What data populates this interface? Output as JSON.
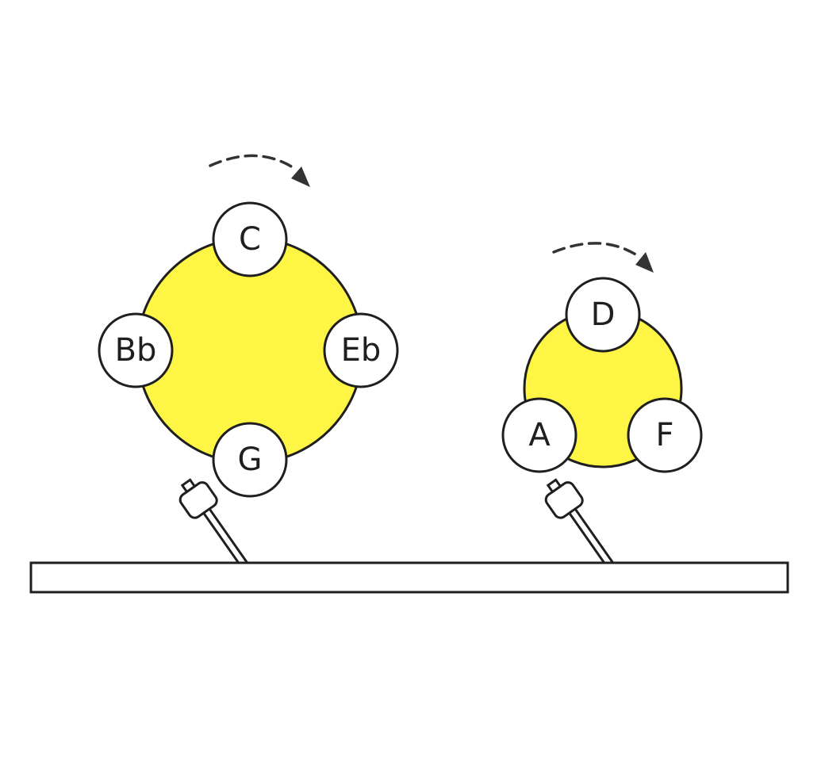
{
  "colors": {
    "wheel_fill": "#fff545",
    "stroke": "#1f1f1f",
    "note_fill": "#ffffff",
    "background": "#ffffff"
  },
  "wheels": [
    {
      "id": "wheel-1",
      "notes": [
        "C",
        "Eb",
        "G",
        "Bb"
      ],
      "rotation": "clockwise"
    },
    {
      "id": "wheel-2",
      "notes": [
        "D",
        "F",
        "A"
      ],
      "rotation": "clockwise"
    }
  ],
  "icons": {
    "rotation_arrow": "dashed-arrow-icon",
    "striker": "mallet-icon",
    "base": "wooden-board"
  }
}
